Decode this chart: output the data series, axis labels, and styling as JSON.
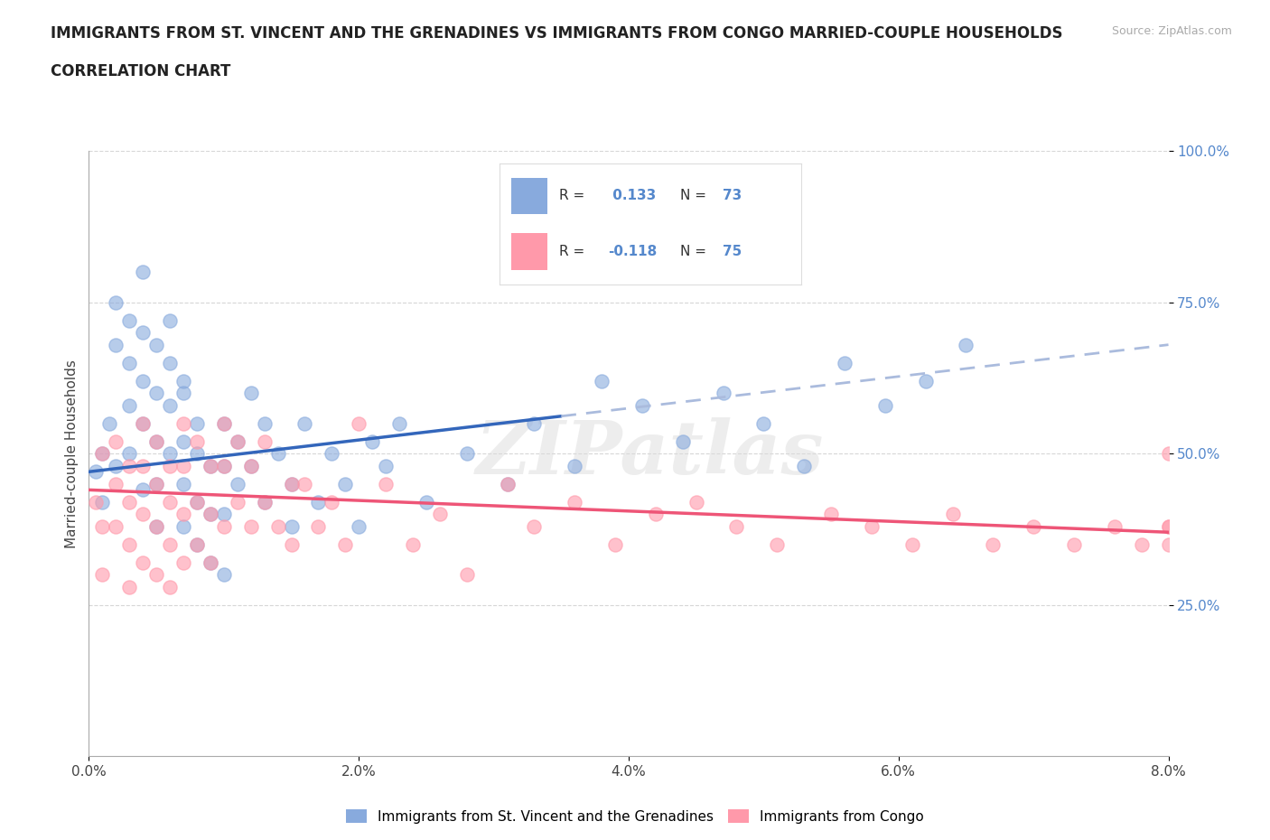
{
  "title_line1": "IMMIGRANTS FROM ST. VINCENT AND THE GRENADINES VS IMMIGRANTS FROM CONGO MARRIED-COUPLE HOUSEHOLDS",
  "title_line2": "CORRELATION CHART",
  "source_text": "Source: ZipAtlas.com",
  "ylabel": "Married-couple Households",
  "xmin": 0.0,
  "xmax": 0.08,
  "ymin": 0.0,
  "ymax": 1.0,
  "yticks": [
    0.25,
    0.5,
    0.75,
    1.0
  ],
  "ytick_labels": [
    "25.0%",
    "50.0%",
    "75.0%",
    "100.0%"
  ],
  "xticks": [
    0.0,
    0.02,
    0.04,
    0.06,
    0.08
  ],
  "xtick_labels": [
    "0.0%",
    "2.0%",
    "4.0%",
    "6.0%",
    "8.0%"
  ],
  "grid_color": "#cccccc",
  "background_color": "#ffffff",
  "blue_color": "#88aadd",
  "pink_color": "#ff99aa",
  "trend_blue_color": "#3366bb",
  "trend_pink_color": "#ee5577",
  "trend_blue_dash_color": "#aabbdd",
  "axis_label_color": "#5588cc",
  "watermark": "ZIPatlas",
  "legend_r1": "R =  0.133",
  "legend_n1": "N = 73",
  "legend_r2": "R = -0.118",
  "legend_n2": "N = 75",
  "blue_label": "Immigrants from St. Vincent and the Grenadines",
  "pink_label": "Immigrants from Congo",
  "blue_R": 0.133,
  "blue_N": 73,
  "pink_R": -0.118,
  "pink_N": 75,
  "blue_trend_x0": 0.0,
  "blue_trend_y0": 0.47,
  "blue_trend_x1": 0.08,
  "blue_trend_y1": 0.68,
  "blue_trend_solid_end": 0.035,
  "pink_trend_x0": 0.0,
  "pink_trend_y0": 0.44,
  "pink_trend_x1": 0.08,
  "pink_trend_y1": 0.37,
  "blue_scatter_x": [
    0.0005,
    0.001,
    0.001,
    0.0015,
    0.002,
    0.002,
    0.002,
    0.003,
    0.003,
    0.003,
    0.003,
    0.004,
    0.004,
    0.004,
    0.004,
    0.004,
    0.005,
    0.005,
    0.005,
    0.005,
    0.005,
    0.006,
    0.006,
    0.006,
    0.006,
    0.007,
    0.007,
    0.007,
    0.007,
    0.007,
    0.008,
    0.008,
    0.008,
    0.008,
    0.009,
    0.009,
    0.009,
    0.01,
    0.01,
    0.01,
    0.01,
    0.011,
    0.011,
    0.012,
    0.012,
    0.013,
    0.013,
    0.014,
    0.015,
    0.015,
    0.016,
    0.017,
    0.018,
    0.019,
    0.02,
    0.021,
    0.022,
    0.023,
    0.025,
    0.028,
    0.031,
    0.033,
    0.036,
    0.038,
    0.041,
    0.044,
    0.047,
    0.05,
    0.053,
    0.056,
    0.059,
    0.062,
    0.065
  ],
  "blue_scatter_y": [
    0.47,
    0.5,
    0.42,
    0.55,
    0.75,
    0.68,
    0.48,
    0.72,
    0.65,
    0.58,
    0.5,
    0.8,
    0.7,
    0.62,
    0.55,
    0.44,
    0.68,
    0.6,
    0.52,
    0.45,
    0.38,
    0.72,
    0.65,
    0.58,
    0.5,
    0.6,
    0.52,
    0.45,
    0.38,
    0.62,
    0.55,
    0.5,
    0.42,
    0.35,
    0.48,
    0.4,
    0.32,
    0.55,
    0.48,
    0.4,
    0.3,
    0.52,
    0.45,
    0.6,
    0.48,
    0.55,
    0.42,
    0.5,
    0.45,
    0.38,
    0.55,
    0.42,
    0.5,
    0.45,
    0.38,
    0.52,
    0.48,
    0.55,
    0.42,
    0.5,
    0.45,
    0.55,
    0.48,
    0.62,
    0.58,
    0.52,
    0.6,
    0.55,
    0.48,
    0.65,
    0.58,
    0.62,
    0.68
  ],
  "pink_scatter_x": [
    0.0005,
    0.001,
    0.001,
    0.001,
    0.002,
    0.002,
    0.002,
    0.003,
    0.003,
    0.003,
    0.003,
    0.004,
    0.004,
    0.004,
    0.004,
    0.005,
    0.005,
    0.005,
    0.005,
    0.006,
    0.006,
    0.006,
    0.006,
    0.007,
    0.007,
    0.007,
    0.007,
    0.008,
    0.008,
    0.008,
    0.009,
    0.009,
    0.009,
    0.01,
    0.01,
    0.01,
    0.011,
    0.011,
    0.012,
    0.012,
    0.013,
    0.013,
    0.014,
    0.015,
    0.015,
    0.016,
    0.017,
    0.018,
    0.019,
    0.02,
    0.022,
    0.024,
    0.026,
    0.028,
    0.031,
    0.033,
    0.036,
    0.039,
    0.042,
    0.045,
    0.048,
    0.051,
    0.055,
    0.058,
    0.061,
    0.064,
    0.067,
    0.07,
    0.073,
    0.076,
    0.078,
    0.08,
    0.08,
    0.08,
    0.08
  ],
  "pink_scatter_y": [
    0.42,
    0.5,
    0.38,
    0.3,
    0.52,
    0.45,
    0.38,
    0.48,
    0.42,
    0.35,
    0.28,
    0.55,
    0.48,
    0.4,
    0.32,
    0.52,
    0.45,
    0.38,
    0.3,
    0.48,
    0.42,
    0.35,
    0.28,
    0.55,
    0.48,
    0.4,
    0.32,
    0.52,
    0.42,
    0.35,
    0.48,
    0.4,
    0.32,
    0.55,
    0.48,
    0.38,
    0.52,
    0.42,
    0.48,
    0.38,
    0.52,
    0.42,
    0.38,
    0.45,
    0.35,
    0.45,
    0.38,
    0.42,
    0.35,
    0.55,
    0.45,
    0.35,
    0.4,
    0.3,
    0.45,
    0.38,
    0.42,
    0.35,
    0.4,
    0.42,
    0.38,
    0.35,
    0.4,
    0.38,
    0.35,
    0.4,
    0.35,
    0.38,
    0.35,
    0.38,
    0.35,
    0.38,
    0.35,
    0.38,
    0.5
  ]
}
